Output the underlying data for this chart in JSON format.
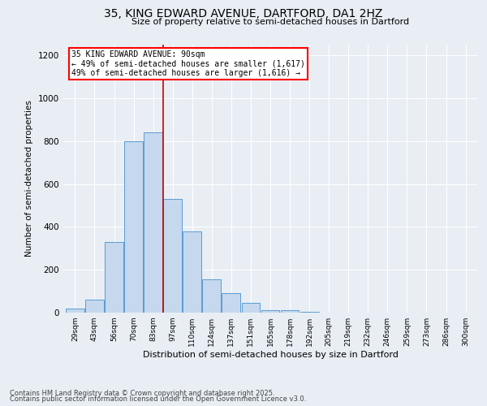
{
  "title": "35, KING EDWARD AVENUE, DARTFORD, DA1 2HZ",
  "subtitle": "Size of property relative to semi-detached houses in Dartford",
  "xlabel": "Distribution of semi-detached houses by size in Dartford",
  "ylabel": "Number of semi-detached properties",
  "footnote1": "Contains HM Land Registry data © Crown copyright and database right 2025.",
  "footnote2": "Contains public sector information licensed under the Open Government Licence v3.0.",
  "annotation_line1": "35 KING EDWARD AVENUE: 90sqm",
  "annotation_line2": "← 49% of semi-detached houses are smaller (1,617)",
  "annotation_line3": "49% of semi-detached houses are larger (1,616) →",
  "categories": [
    "29sqm",
    "43sqm",
    "56sqm",
    "70sqm",
    "83sqm",
    "97sqm",
    "110sqm",
    "124sqm",
    "137sqm",
    "151sqm",
    "165sqm",
    "178sqm",
    "192sqm",
    "205sqm",
    "219sqm",
    "232sqm",
    "246sqm",
    "259sqm",
    "273sqm",
    "286sqm",
    "300sqm"
  ],
  "values": [
    20,
    60,
    330,
    800,
    840,
    530,
    380,
    155,
    90,
    45,
    10,
    10,
    5,
    0,
    0,
    0,
    0,
    0,
    0,
    0,
    0
  ],
  "bar_color": "#c5d8ed",
  "bar_edge_color": "#5b9bd5",
  "vline_color": "#cc0000",
  "background_color": "#e8eef4",
  "ylim": [
    0,
    1250
  ],
  "yticks": [
    0,
    200,
    400,
    600,
    800,
    1000,
    1200
  ],
  "title_fontsize": 10,
  "subtitle_fontsize": 8,
  "ylabel_fontsize": 7.5,
  "xlabel_fontsize": 8,
  "ytick_fontsize": 7.5,
  "xtick_fontsize": 6.5,
  "footnote_fontsize": 6,
  "annotation_fontsize": 7
}
